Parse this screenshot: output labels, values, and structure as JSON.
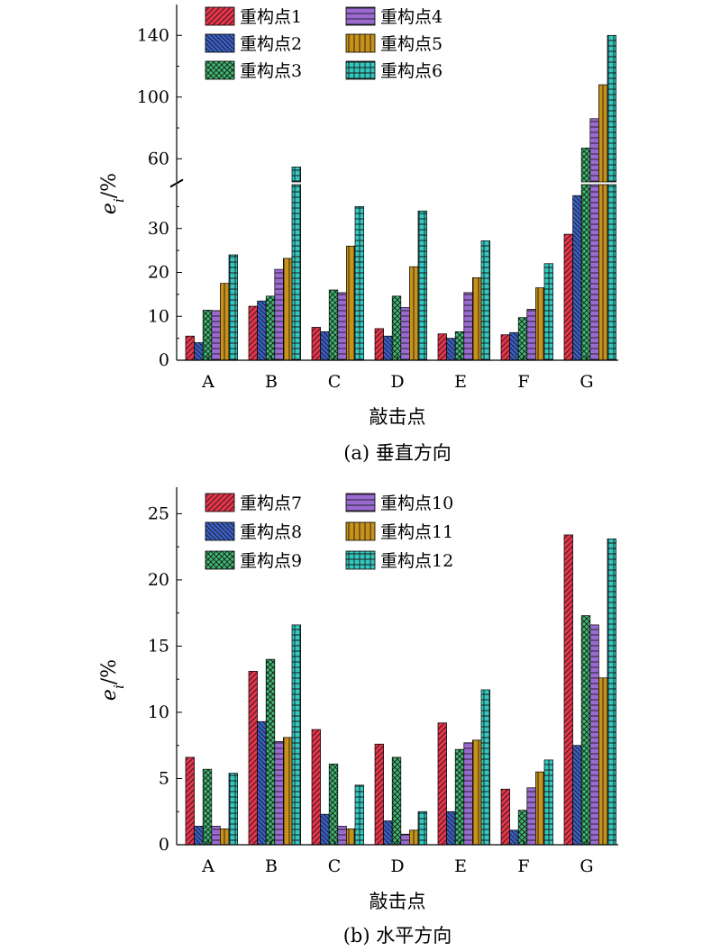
{
  "colors": {
    "s1": "#e8334a",
    "s2": "#3a5fc8",
    "s3": "#3db870",
    "s4": "#9a6ad0",
    "s5": "#c8921a",
    "s6": "#33c8c0"
  },
  "chart_data": [
    {
      "type": "bar",
      "caption": "(a) 垂直方向",
      "xlabel": "敲击点",
      "ylabel": "e_i/%",
      "categories": [
        "A",
        "B",
        "C",
        "D",
        "E",
        "F",
        "G"
      ],
      "axis_break": [
        40,
        45
      ],
      "ylim_lower": [
        0,
        40
      ],
      "ylim_upper": [
        45,
        160
      ],
      "yticks": [
        0,
        10,
        20,
        30,
        60,
        100,
        140
      ],
      "legend_position": "top",
      "series": [
        {
          "name": "重构点1",
          "pattern": "hatch-diag",
          "values": [
            5.5,
            12.3,
            7.5,
            7.2,
            6.0,
            5.8,
            28.7
          ]
        },
        {
          "name": "重构点2",
          "pattern": "hatch-diag-dense",
          "values": [
            4.0,
            13.5,
            6.5,
            5.5,
            5.0,
            6.3,
            37.5
          ]
        },
        {
          "name": "重构点3",
          "pattern": "crosshatch",
          "values": [
            11.4,
            14.6,
            16.0,
            14.6,
            6.5,
            9.7,
            67
          ]
        },
        {
          "name": "重构点4",
          "pattern": "hatch-horizontal",
          "values": [
            11.3,
            20.7,
            15.4,
            12.0,
            15.4,
            11.6,
            86
          ]
        },
        {
          "name": "重构点5",
          "pattern": "hatch-vertical",
          "values": [
            17.5,
            23.2,
            26.0,
            21.3,
            18.8,
            16.5,
            108
          ]
        },
        {
          "name": "重构点6",
          "pattern": "grid",
          "values": [
            24.0,
            54.7,
            35.0,
            34.0,
            27.2,
            22.0,
            140
          ]
        }
      ]
    },
    {
      "type": "bar",
      "caption": "(b) 水平方向",
      "xlabel": "敲击点",
      "ylabel": "e_i/%",
      "categories": [
        "A",
        "B",
        "C",
        "D",
        "E",
        "F",
        "G"
      ],
      "ylim": [
        0,
        27
      ],
      "yticks": [
        0,
        5,
        10,
        15,
        20,
        25
      ],
      "legend_position": "top",
      "series": [
        {
          "name": "重构点7",
          "pattern": "hatch-diag",
          "values": [
            6.6,
            13.1,
            8.7,
            7.6,
            9.2,
            4.2,
            23.4
          ]
        },
        {
          "name": "重构点8",
          "pattern": "hatch-diag-dense",
          "values": [
            1.4,
            9.3,
            2.3,
            1.8,
            2.5,
            1.1,
            7.5
          ]
        },
        {
          "name": "重构点9",
          "pattern": "crosshatch",
          "values": [
            5.7,
            14.0,
            6.1,
            6.6,
            7.2,
            2.6,
            17.3
          ]
        },
        {
          "name": "重构点10",
          "pattern": "hatch-horizontal",
          "values": [
            1.4,
            7.8,
            1.4,
            0.8,
            7.7,
            4.3,
            16.6
          ]
        },
        {
          "name": "重构点11",
          "pattern": "hatch-vertical",
          "values": [
            1.2,
            8.1,
            1.2,
            1.1,
            7.9,
            5.5,
            12.6
          ]
        },
        {
          "name": "重构点12",
          "pattern": "grid",
          "values": [
            5.4,
            16.6,
            4.5,
            2.5,
            11.7,
            6.4,
            23.1
          ]
        }
      ]
    }
  ]
}
